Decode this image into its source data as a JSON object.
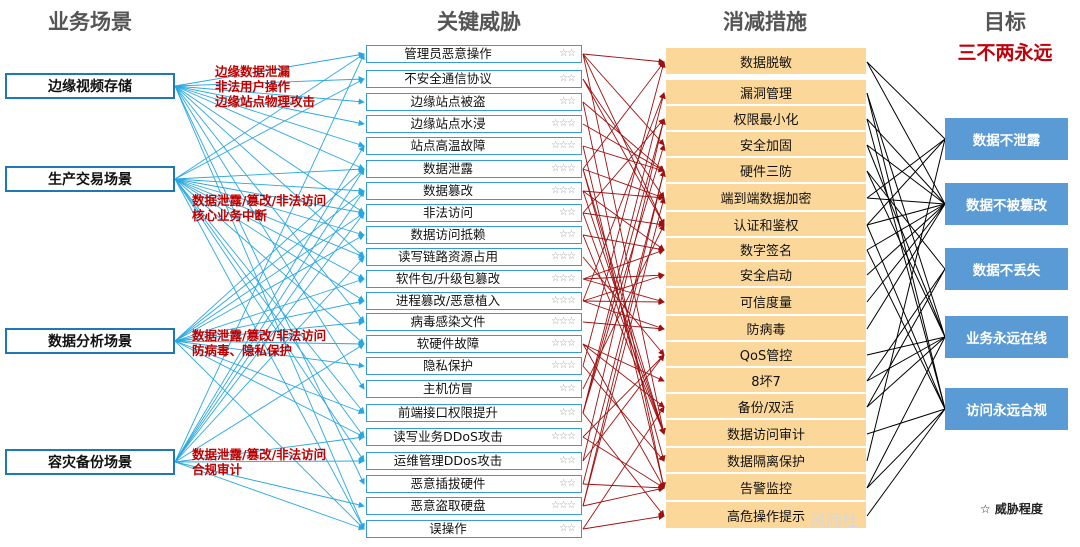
{
  "headers": {
    "scenarios": "业务场景",
    "threats": "关键威胁",
    "mitigations": "消减措施",
    "goals": "目标",
    "goals_subtitle": "三不两永远"
  },
  "scenarios": [
    {
      "label": "边缘视频存储",
      "annotation": [
        "边缘数据泄漏",
        "非法用户操作",
        "边缘站点物理攻击"
      ]
    },
    {
      "label": "生产交易场景",
      "annotation": [
        "数据泄露/篡改/非法访问",
        "核心业务中断"
      ]
    },
    {
      "label": "数据分析场景",
      "annotation": [
        "数据泄露/篡改/非法访问",
        "防病毒、隐私保护"
      ]
    },
    {
      "label": "容灾备份场景",
      "annotation": [
        "数据泄露/篡改/非法访问",
        "合规审计"
      ]
    }
  ],
  "threats": [
    {
      "label": "管理员恶意操作",
      "stars": "☆☆"
    },
    {
      "label": "不安全通信协议",
      "stars": "☆☆"
    },
    {
      "label": "边缘站点被盗",
      "stars": "☆☆"
    },
    {
      "label": "边缘站点水浸",
      "stars": "☆☆☆"
    },
    {
      "label": "站点高温故障",
      "stars": "☆☆☆"
    },
    {
      "label": "数据泄露",
      "stars": "☆☆☆"
    },
    {
      "label": "数据篡改",
      "stars": "☆☆☆"
    },
    {
      "label": "非法访问",
      "stars": "☆☆"
    },
    {
      "label": "数据访问抵赖",
      "stars": "☆☆"
    },
    {
      "label": "读写链路资源占用",
      "stars": "☆☆☆"
    },
    {
      "label": "软件包/升级包篡改",
      "stars": "☆☆☆"
    },
    {
      "label": "进程篡改/恶意植入",
      "stars": "☆☆☆"
    },
    {
      "label": "病毒感染文件",
      "stars": "☆☆☆"
    },
    {
      "label": "软硬件故障",
      "stars": "☆☆☆"
    },
    {
      "label": "隐私保护",
      "stars": "☆☆☆"
    },
    {
      "label": "主机仿冒",
      "stars": "☆☆"
    },
    {
      "label": "前端接口权限提升",
      "stars": "☆☆"
    },
    {
      "label": "读写业务DDoS攻击",
      "stars": "☆☆☆"
    },
    {
      "label": "运维管理DDos攻击",
      "stars": "☆☆"
    },
    {
      "label": "恶意插拔硬件",
      "stars": "☆☆"
    },
    {
      "label": "恶意盗取硬盘",
      "stars": "☆☆☆"
    },
    {
      "label": "误操作",
      "stars": "☆☆"
    }
  ],
  "mitigations": [
    "数据脱敏",
    "漏洞管理",
    "权限最小化",
    "安全加固",
    "硬件三防",
    "端到端数据加密",
    "认证和鉴权",
    "数字签名",
    "安全启动",
    "可信度量",
    "防病毒",
    "QoS管控",
    "8坏7",
    "备份/双活",
    "数据访问审计",
    "数据隔离保护",
    "告警监控",
    "高危操作提示"
  ],
  "goals": [
    "数据不泄露",
    "数据不被篡改",
    "数据不丢失",
    "业务永远在线",
    "访问永远合规"
  ],
  "legend": "☆ 威胁程度",
  "watermark": "风闻社",
  "colors": {
    "scenario_line": "#29a8e0",
    "mitigation_line": "#a01010",
    "goal_line": "#000000",
    "mitigation_fill": "#fbd79a",
    "goal_fill": "#5b9bd5",
    "annotation": "#c00000",
    "subtitle": "#c0000a"
  }
}
